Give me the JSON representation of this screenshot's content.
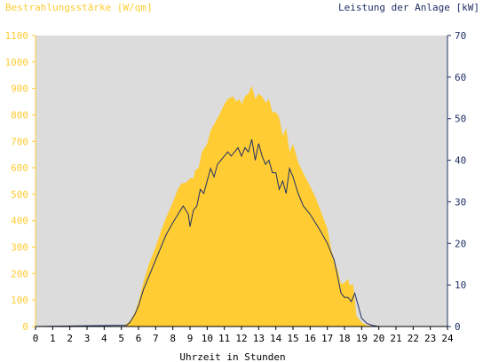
{
  "chart_data": {
    "type": "area",
    "title_left": "Bestrahlungsstärke [W/qm]",
    "title_right": "Leistung der Anlage [kW]",
    "xlabel": "Uhrzeit in Stunden",
    "xlim": [
      0,
      24
    ],
    "x_ticks": [
      "0",
      "1",
      "2",
      "3",
      "4",
      "5",
      "6",
      "7",
      "8",
      "9",
      "10",
      "11",
      "12",
      "13",
      "14",
      "15",
      "16",
      "17",
      "18",
      "19",
      "20",
      "21",
      "22",
      "23",
      "24"
    ],
    "y_left": {
      "lim": [
        0,
        1100
      ],
      "ticks": [
        "0",
        "100",
        "200",
        "300",
        "400",
        "500",
        "600",
        "700",
        "800",
        "900",
        "1000",
        "1100"
      ]
    },
    "y_right": {
      "lim": [
        0,
        70
      ],
      "ticks": [
        "0",
        "10",
        "20",
        "30",
        "40",
        "50",
        "60",
        "70"
      ]
    },
    "grid": false,
    "colors": {
      "irradiance": "#ffcc33",
      "power": "#1f3066",
      "plot_bg": "#dcdcdc",
      "left_axis": "#ffcc33",
      "right_axis": "#1f3066"
    },
    "series": [
      {
        "axis": "left",
        "x": [
          5.2,
          5.5,
          5.8,
          6.0,
          6.3,
          6.6,
          7.0,
          7.3,
          7.6,
          8.0,
          8.3,
          8.5,
          8.8,
          9.0,
          9.2,
          9.3,
          9.5,
          9.7,
          10.0,
          10.2,
          10.5,
          10.7,
          11.0,
          11.2,
          11.5,
          11.7,
          11.9,
          12.0,
          12.2,
          12.4,
          12.6,
          12.8,
          13.0,
          13.2,
          13.4,
          13.6,
          13.8,
          14.0,
          14.2,
          14.4,
          14.6,
          14.8,
          15.0,
          15.3,
          15.6,
          16.0,
          16.3,
          16.6,
          17.0,
          17.2,
          17.4,
          17.6,
          17.8,
          18.0,
          18.2,
          18.3,
          18.5,
          18.7,
          19.0,
          19.3,
          19.6,
          20.0
        ],
        "y": [
          5,
          20,
          55,
          95,
          170,
          235,
          300,
          360,
          410,
          470,
          520,
          540,
          545,
          560,
          560,
          590,
          600,
          660,
          690,
          740,
          775,
          800,
          840,
          860,
          870,
          850,
          860,
          840,
          870,
          880,
          910,
          860,
          880,
          870,
          845,
          860,
          810,
          810,
          790,
          720,
          750,
          660,
          690,
          620,
          580,
          530,
          490,
          440,
          370,
          300,
          250,
          215,
          160,
          165,
          180,
          155,
          160,
          40,
          15,
          5,
          2,
          0
        ]
      },
      {
        "axis": "right",
        "x": [
          5.3,
          5.5,
          5.8,
          6.0,
          6.3,
          6.6,
          7.0,
          7.3,
          7.6,
          8.0,
          8.3,
          8.6,
          8.9,
          9.0,
          9.1,
          9.2,
          9.4,
          9.6,
          9.8,
          10.0,
          10.2,
          10.4,
          10.6,
          10.8,
          11.0,
          11.2,
          11.4,
          11.6,
          11.8,
          12.0,
          12.2,
          12.4,
          12.6,
          12.8,
          13.0,
          13.2,
          13.4,
          13.6,
          13.8,
          14.0,
          14.2,
          14.4,
          14.6,
          14.8,
          15.0,
          15.3,
          15.6,
          16.0,
          16.3,
          16.6,
          17.0,
          17.2,
          17.4,
          17.6,
          17.8,
          18.0,
          18.2,
          18.4,
          18.6,
          18.8,
          19.0,
          19.3,
          19.6,
          20.0
        ],
        "y": [
          0.3,
          1,
          3,
          5,
          9,
          12,
          16,
          19,
          22,
          25,
          27,
          29,
          27,
          24,
          26,
          28,
          29,
          33,
          32,
          35,
          38,
          36,
          39,
          40,
          41,
          42,
          41,
          42,
          43,
          41,
          43,
          42,
          45,
          40,
          44,
          41,
          39,
          40,
          37,
          37,
          33,
          35,
          32,
          38,
          36,
          32,
          29,
          27,
          25,
          23,
          20,
          18,
          16,
          12,
          8,
          7,
          7,
          6,
          8,
          5,
          2,
          0.8,
          0.3,
          0
        ]
      }
    ]
  }
}
